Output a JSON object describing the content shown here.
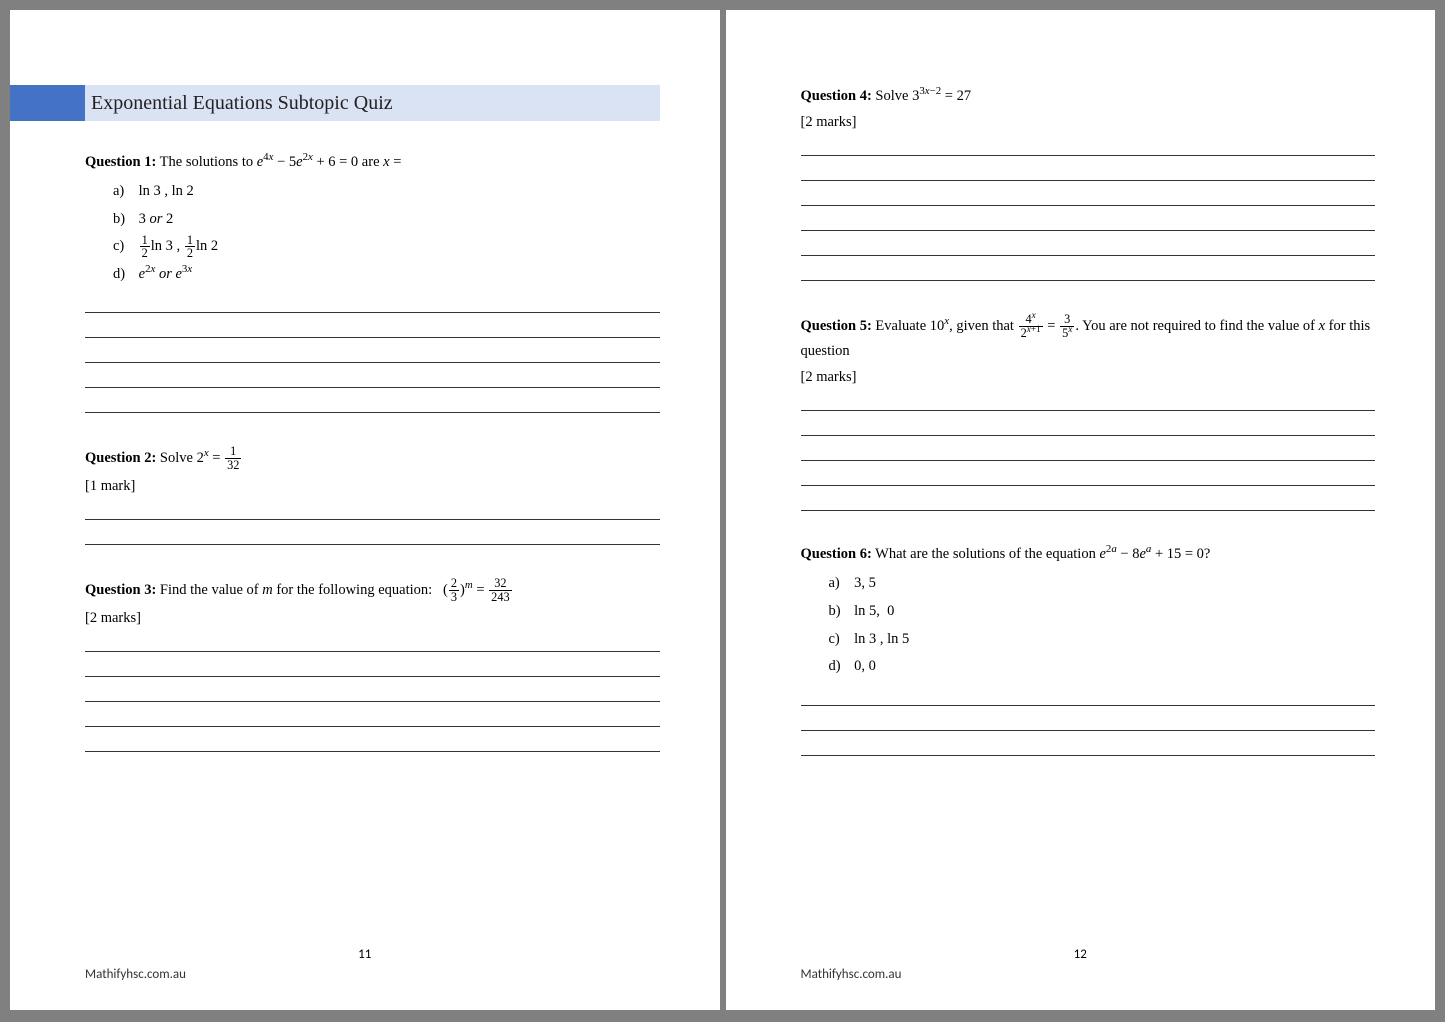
{
  "colors": {
    "accent": "#4472c4",
    "title_bg": "#dae3f3",
    "page_bg": "#ffffff",
    "body_bg": "#808080",
    "line": "#333333"
  },
  "fonts": {
    "body": "Times New Roman",
    "footer": "Calibri",
    "title_size_pt": 20,
    "body_size_pt": 14.5
  },
  "left_page": {
    "title": "Exponential Equations Subtopic Quiz",
    "page_number": "11",
    "footer": "Mathifyhsc.com.au",
    "q1": {
      "label": "Question 1:",
      "stem_plain": "The solutions to e^{4x} − 5e^{2x} + 6 = 0 are x =",
      "options": {
        "a": "ln 3 , ln 2",
        "b": "3 or 2",
        "c": "½ ln 3 , ½ ln 2",
        "d": "e^{2x} or e^{3x}"
      },
      "answer_lines": 5
    },
    "q2": {
      "label": "Question 2:",
      "stem_plain": "Solve 2^x = 1/32",
      "marks": "[1 mark]",
      "answer_lines": 2
    },
    "q3": {
      "label": "Question 3:",
      "stem_plain": "Find the value of m for the following equation:  (2/3)^m = 32/243",
      "marks": "[2 marks]",
      "answer_lines": 5
    }
  },
  "right_page": {
    "page_number": "12",
    "footer": "Mathifyhsc.com.au",
    "q4": {
      "label": "Question 4:",
      "stem_plain": "Solve 3^{3x−2} = 27",
      "marks": "[2 marks]",
      "answer_lines": 6
    },
    "q5": {
      "label": "Question 5:",
      "stem_plain": "Evaluate 10^x, given that 4^x / 2^{x+1} = 3 / 5^x. You are not required to find the value of x for this question",
      "marks": "[2 marks]",
      "answer_lines": 5
    },
    "q6": {
      "label": "Question 6:",
      "stem_plain": "What are the solutions of the equation e^{2a} − 8e^a + 15 = 0?",
      "options": {
        "a": "3, 5",
        "b": "ln 5,  0",
        "c": "ln 3 , ln 5",
        "d": "0, 0"
      },
      "answer_lines": 3
    }
  }
}
